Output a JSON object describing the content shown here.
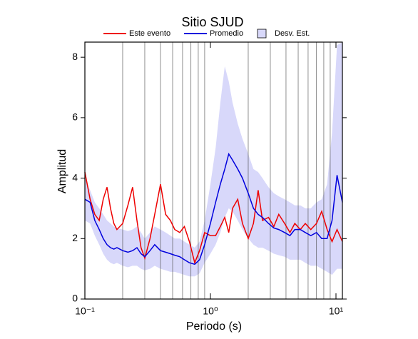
{
  "chart_data": {
    "type": "line",
    "title": "Sitio SJUD",
    "xlabel": "Periodo (s)",
    "ylabel": "Amplitud",
    "xscale": "log",
    "xlim": [
      0.1,
      11.25
    ],
    "ylim": [
      0,
      8.5
    ],
    "xticks": [
      {
        "value": 0.1,
        "label": "10⁻¹"
      },
      {
        "value": 1,
        "label": "10⁰"
      },
      {
        "value": 10,
        "label": "10¹"
      }
    ],
    "xminorticks": [
      0.2,
      0.3,
      0.4,
      0.5,
      0.6,
      0.7,
      0.8,
      0.9,
      2,
      3,
      4,
      5,
      6,
      7,
      8,
      9
    ],
    "yticks": [
      0,
      2,
      4,
      6,
      8
    ],
    "grid": "x",
    "legend": "top",
    "x": [
      0.1,
      0.11,
      0.12,
      0.13,
      0.14,
      0.15,
      0.16,
      0.17,
      0.18,
      0.2,
      0.22,
      0.24,
      0.26,
      0.28,
      0.3,
      0.33,
      0.36,
      0.4,
      0.44,
      0.48,
      0.52,
      0.57,
      0.62,
      0.68,
      0.75,
      0.82,
      0.9,
      1.0,
      1.1,
      1.2,
      1.3,
      1.4,
      1.5,
      1.65,
      1.8,
      2.0,
      2.2,
      2.4,
      2.6,
      2.9,
      3.2,
      3.5,
      3.9,
      4.3,
      4.7,
      5.2,
      5.7,
      6.3,
      7.0,
      7.7,
      8.5,
      9.3,
      10.2,
      11.25
    ],
    "series": [
      {
        "name": "Este evento",
        "color": "#ee0000",
        "values": [
          4.2,
          3.3,
          2.8,
          2.6,
          3.3,
          3.7,
          3.0,
          2.5,
          2.3,
          2.5,
          3.1,
          3.7,
          2.6,
          1.7,
          1.35,
          2.0,
          2.8,
          3.8,
          2.8,
          2.6,
          2.3,
          2.2,
          2.4,
          1.9,
          1.2,
          1.6,
          2.2,
          2.1,
          2.1,
          2.4,
          2.7,
          2.2,
          3.0,
          3.3,
          2.5,
          2.0,
          2.5,
          3.6,
          2.6,
          2.7,
          2.4,
          2.8,
          2.5,
          2.2,
          2.5,
          2.3,
          2.5,
          2.3,
          2.5,
          2.9,
          2.3,
          1.9,
          2.3,
          1.9
        ]
      },
      {
        "name": "Promedio",
        "color": "#0000dd",
        "values": [
          3.3,
          3.2,
          2.6,
          2.3,
          2.0,
          1.8,
          1.7,
          1.65,
          1.7,
          1.6,
          1.55,
          1.6,
          1.7,
          1.5,
          1.4,
          1.6,
          1.8,
          1.6,
          1.55,
          1.5,
          1.45,
          1.4,
          1.3,
          1.2,
          1.15,
          1.3,
          1.8,
          2.5,
          3.2,
          3.8,
          4.3,
          4.8,
          4.6,
          4.3,
          4.0,
          3.5,
          3.0,
          2.8,
          2.7,
          2.5,
          2.35,
          2.3,
          2.2,
          2.1,
          2.3,
          2.3,
          2.2,
          2.1,
          2.2,
          2.0,
          2.0,
          2.6,
          4.1,
          3.2
        ]
      },
      {
        "name": "Desv. Est.",
        "color": "#d8d8fa",
        "upper": [
          4.0,
          3.6,
          3.2,
          3.0,
          2.8,
          2.6,
          2.5,
          2.4,
          2.35,
          2.3,
          2.25,
          2.3,
          2.4,
          2.2,
          2.0,
          2.2,
          2.4,
          2.3,
          2.2,
          2.1,
          2.0,
          2.0,
          1.9,
          1.8,
          1.7,
          1.9,
          2.6,
          3.8,
          5.0,
          6.5,
          7.7,
          7.2,
          6.5,
          5.8,
          5.3,
          4.8,
          4.3,
          4.2,
          4.0,
          3.7,
          3.5,
          3.4,
          3.3,
          3.2,
          3.1,
          3.1,
          3.0,
          3.0,
          3.2,
          3.3,
          3.8,
          5.5,
          8.4,
          8.5
        ],
        "lower": [
          2.6,
          2.5,
          2.1,
          1.8,
          1.5,
          1.3,
          1.2,
          1.15,
          1.2,
          1.1,
          1.05,
          1.1,
          1.1,
          1.0,
          0.95,
          1.0,
          1.1,
          1.0,
          0.95,
          0.9,
          0.9,
          0.85,
          0.8,
          0.75,
          0.75,
          0.85,
          1.2,
          1.5,
          1.8,
          2.2,
          2.7,
          3.0,
          2.9,
          2.6,
          2.3,
          2.0,
          1.8,
          1.7,
          1.7,
          1.6,
          1.5,
          1.45,
          1.4,
          1.3,
          1.3,
          1.3,
          1.2,
          1.1,
          1.1,
          1.0,
          0.9,
          0.8,
          1.0,
          1.0
        ]
      }
    ]
  }
}
